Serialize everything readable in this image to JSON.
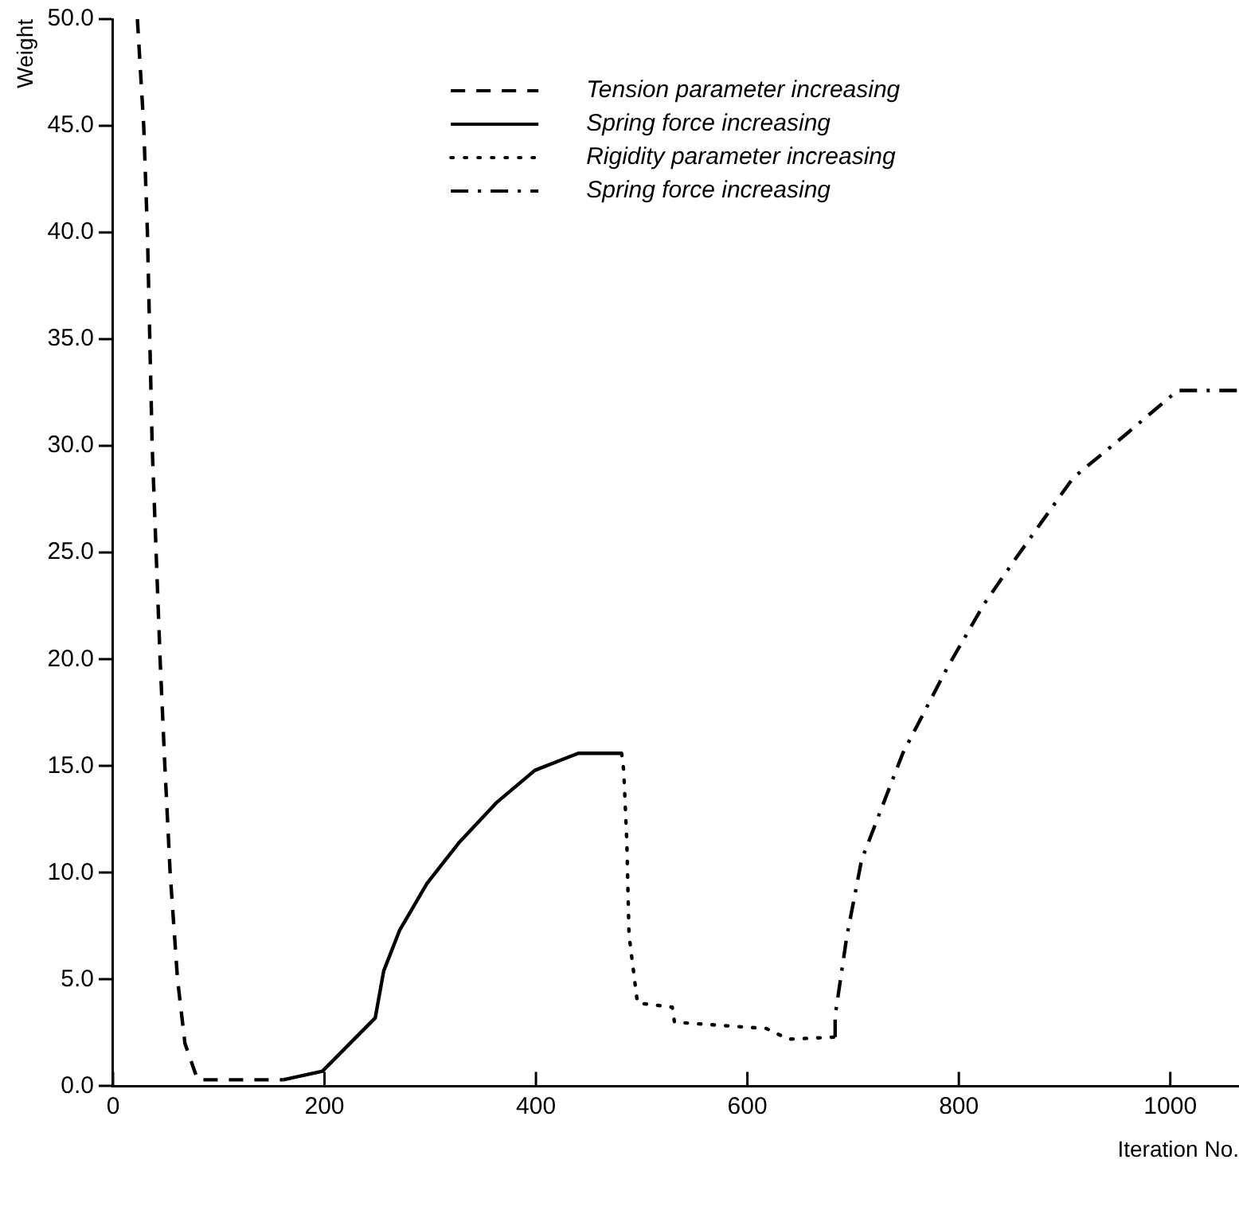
{
  "chart_data": {
    "type": "line",
    "xlabel": "Iteration No.",
    "ylabel": "Weight",
    "xlim": [
      0,
      1065
    ],
    "xticks": [
      0,
      200,
      400,
      600,
      800,
      1000
    ],
    "ylim": [
      0,
      50
    ],
    "yticks": [
      {
        "value": 0,
        "label": "0.0"
      },
      {
        "value": 5,
        "label": "5.0"
      },
      {
        "value": 10,
        "label": "10.0"
      },
      {
        "value": 15,
        "label": "15.0"
      },
      {
        "value": 20,
        "label": "20.0"
      },
      {
        "value": 25,
        "label": "25.0"
      },
      {
        "value": 30,
        "label": "30.0"
      },
      {
        "value": 35,
        "label": "35.0"
      },
      {
        "value": 40,
        "label": "40.0"
      },
      {
        "value": 45,
        "label": "45.0"
      },
      {
        "value": 50,
        "label": "50.0"
      }
    ],
    "grid": false,
    "legend": "top",
    "marker": "none",
    "series": [
      {
        "name": "Tension parameter increasing",
        "color": "#000000",
        "line_style": "dashed",
        "x": [
          23,
          29,
          32.5,
          37,
          44.5,
          49,
          54,
          61,
          68,
          80,
          161
        ],
        "values": [
          50,
          45,
          40,
          30,
          20,
          15,
          10,
          5,
          2,
          0.3,
          0.3
        ]
      },
      {
        "name": "Spring force increasing",
        "color": "#000000",
        "line_style": "solid",
        "x": [
          161,
          198,
          248,
          256,
          271,
          297,
          327,
          363,
          399,
          440,
          481
        ],
        "values": [
          0.3,
          0.7,
          3.2,
          5.4,
          7.3,
          9.5,
          11.4,
          13.3,
          14.8,
          15.6,
          15.6
        ]
      },
      {
        "name": "Rigidity parameter increasing",
        "color": "#000000",
        "line_style": "dotted",
        "x": [
          481,
          483,
          486,
          488,
          496,
          529,
          531,
          618,
          639,
          683
        ],
        "values": [
          15.6,
          14.8,
          11.4,
          7.1,
          3.9,
          3.7,
          3.0,
          2.7,
          2.2,
          2.3
        ]
      },
      {
        "name": "Spring force increasing",
        "color": "#000000",
        "line_style": "dashdot",
        "x": [
          683,
          683,
          694,
          708,
          747,
          789,
          824,
          852,
          908,
          957,
          1007,
          1063
        ],
        "values": [
          2.3,
          3.3,
          7.0,
          10.6,
          15.6,
          19.6,
          22.6,
          24.6,
          28.5,
          30.5,
          32.6,
          32.6
        ]
      }
    ]
  }
}
